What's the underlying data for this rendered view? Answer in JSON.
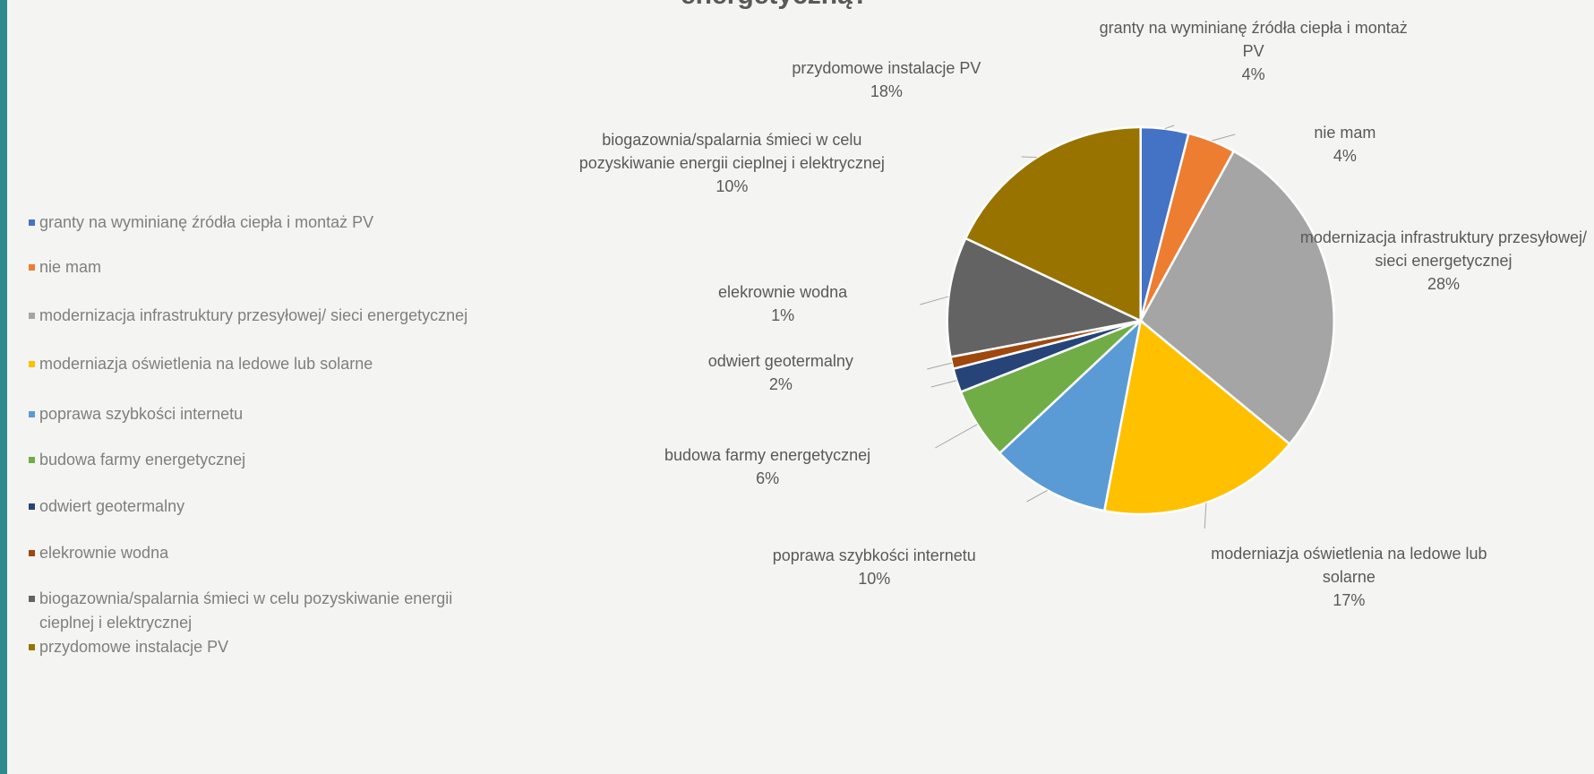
{
  "chart_data": {
    "type": "pie",
    "title": "energetyczną?",
    "categories": [
      "granty na wyminianę źródła ciepła i montaż PV",
      "nie mam",
      "modernizacja infrastruktury przesyłowej/ sieci energetycznej",
      "moderniazja oświetlenia na ledowe lub solarne",
      "poprawa szybkości internetu",
      "budowa farmy energetycznej",
      "odwiert geotermalny",
      "elekrownie wodna",
      "biogazownia/spalarnia śmieci w celu pozyskiwanie energii cieplnej i elektrycznej",
      "przydomowe instalacje PV"
    ],
    "values": [
      4,
      4,
      28,
      17,
      10,
      6,
      2,
      1,
      10,
      18
    ],
    "value_labels": [
      "4%",
      "4%",
      "28%",
      "17%",
      "10%",
      "6%",
      "2%",
      "1%",
      "10%",
      "18%"
    ],
    "colors": [
      "#4472c4",
      "#ed7d31",
      "#a5a5a5",
      "#ffc000",
      "#5b9bd5",
      "#70ad47",
      "#264478",
      "#9e480e",
      "#636363",
      "#997300"
    ],
    "legend": "left"
  }
}
